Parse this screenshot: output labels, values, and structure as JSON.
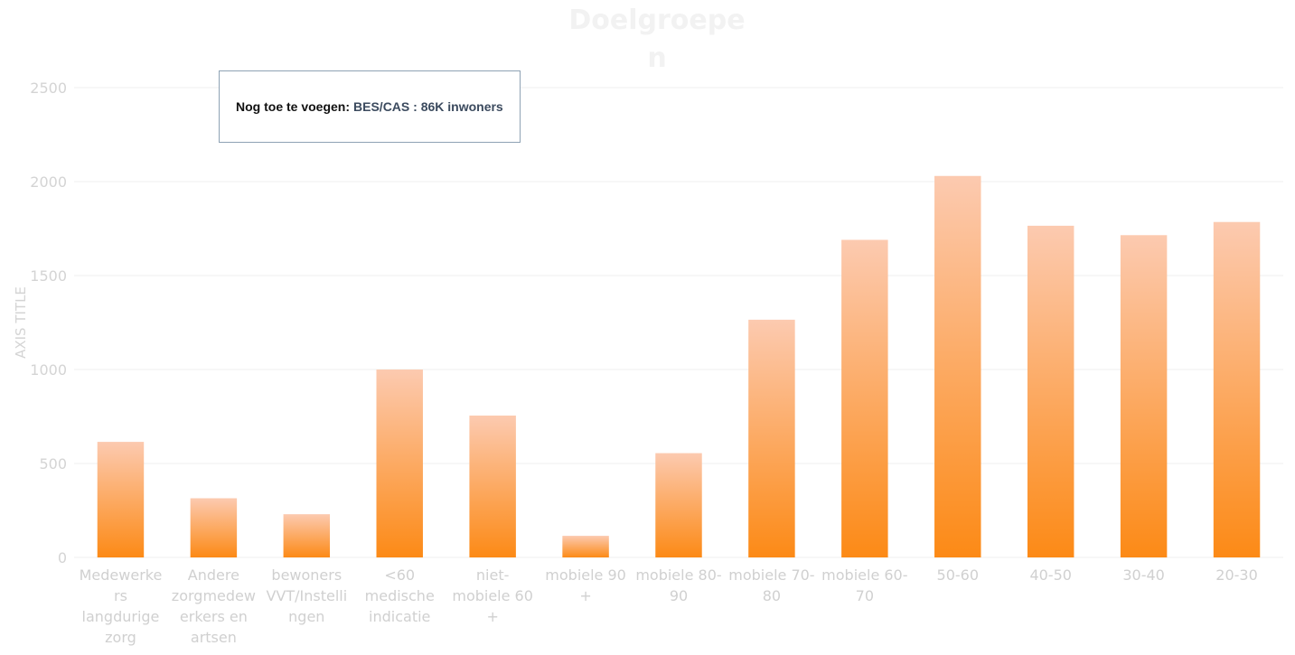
{
  "chart_data": {
    "type": "bar",
    "title_lines": [
      "Doelgroepe",
      "n"
    ],
    "ylabel": "AXIS TITLE",
    "ylim": [
      0,
      2500
    ],
    "yticks": [
      0,
      500,
      1000,
      1500,
      2000,
      2500
    ],
    "grid": true,
    "categories": [
      "Medewerkers langdurige zorg",
      "Andere zorgmedewerkers en artsen",
      "bewoners VVT/Instellingen",
      "<60 medische indicatie",
      "niet-mobiele 60 +",
      "mobiele 90 +",
      "mobiele 80-90",
      "mobiele 70-80",
      "mobiele 60-70",
      "50-60",
      "40-50",
      "30-40",
      "20-30"
    ],
    "category_lines": [
      [
        "Medewerke",
        "rs",
        "langdurige",
        "zorg"
      ],
      [
        "Andere",
        "zorgmedew",
        "erkers en",
        "artsen"
      ],
      [
        "bewoners",
        "VVT/Instelli",
        "ngen"
      ],
      [
        "<60",
        "medische",
        "indicatie"
      ],
      [
        "niet-",
        "mobiele 60",
        "+"
      ],
      [
        "mobiele 90",
        "+"
      ],
      [
        "mobiele 80-",
        "90"
      ],
      [
        "mobiele 70-",
        "80"
      ],
      [
        "mobiele 60-",
        "70"
      ],
      [
        "50-60"
      ],
      [
        "40-50"
      ],
      [
        "30-40"
      ],
      [
        "20-30"
      ]
    ],
    "values": [
      615,
      315,
      230,
      1000,
      755,
      115,
      555,
      1265,
      1690,
      2030,
      1765,
      1715,
      1785
    ],
    "bar_color_top": "#fccab0",
    "bar_color_bottom": "#fc8a16"
  },
  "note": {
    "label": "Nog toe te voegen:",
    "value": "BES/CAS : 86K inwoners"
  }
}
